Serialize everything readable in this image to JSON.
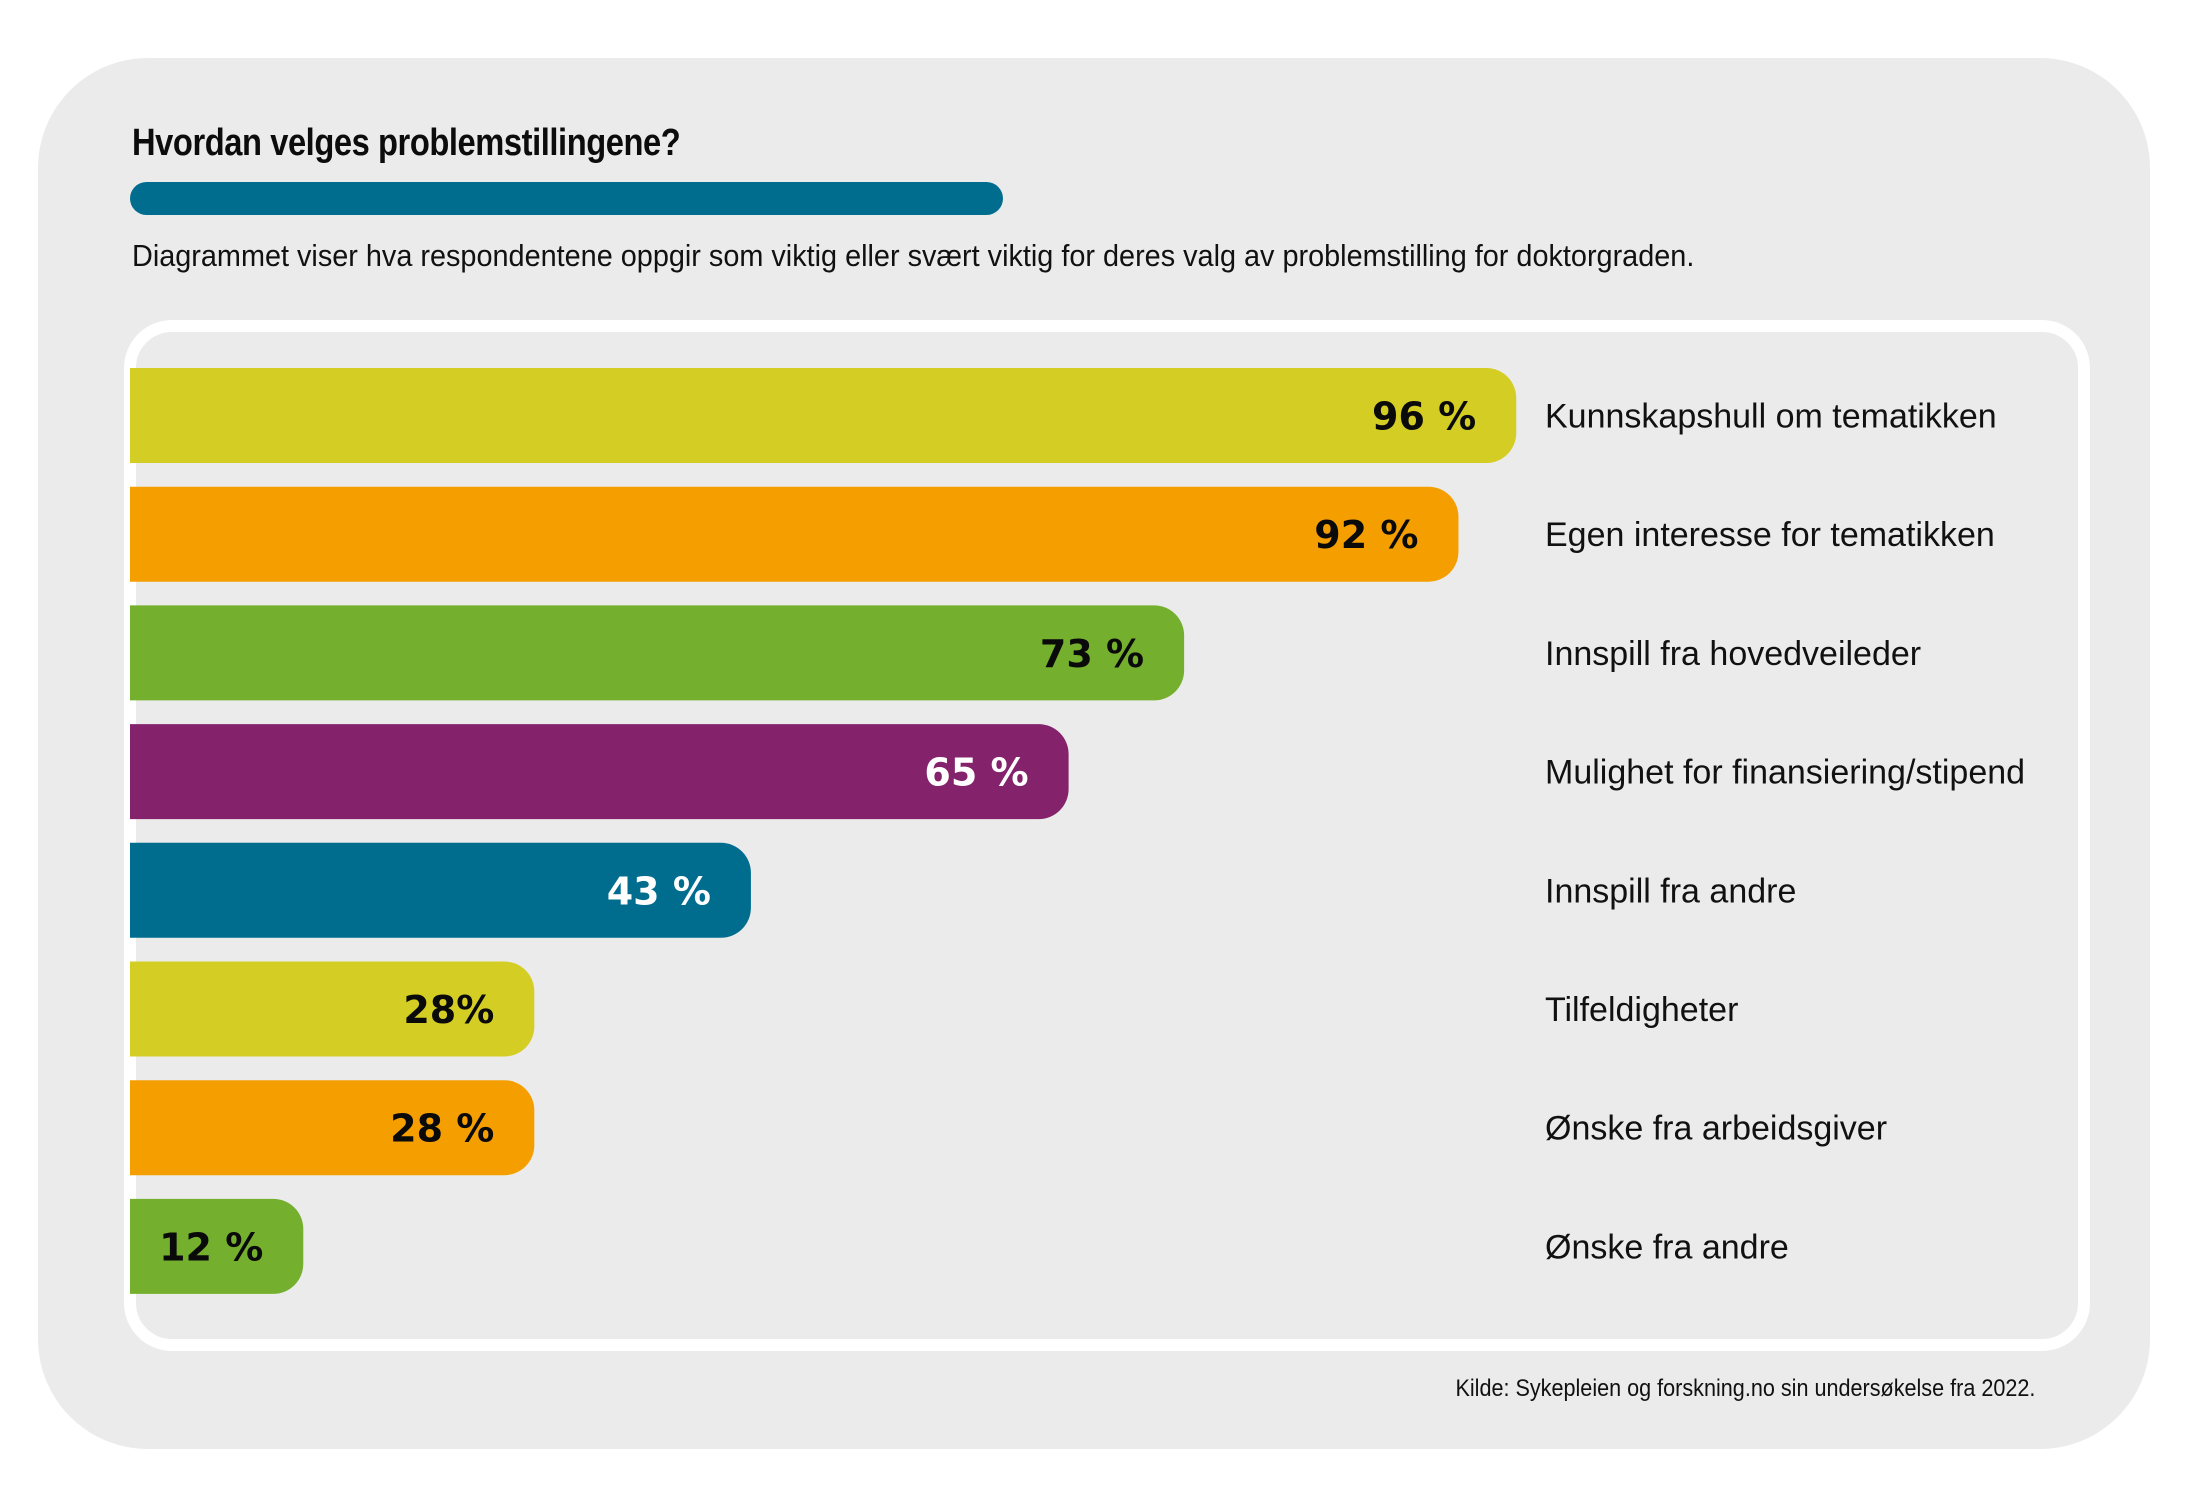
{
  "header": {
    "title": "Hvordan velges problemstillingene?",
    "subtitle": "Diagrammet viser hva respondentene oppgir som viktig eller svært viktig for deres valg av problemstilling for doktorgraden.",
    "accent_color": "#006d8f"
  },
  "footer": {
    "source": "Kilde: Sykepleien og forskning.no sin undersøkelse fra 2022."
  },
  "chart_data": {
    "type": "bar",
    "orientation": "horizontal",
    "title": "Hvordan velges problemstillingene?",
    "subtitle": "Diagrammet viser hva respondentene oppgir som viktig eller svært viktig for deres valg av problemstilling for doktorgraden.",
    "xlabel": "",
    "ylabel": "",
    "unit": "%",
    "grid": false,
    "legend": "none",
    "categories": [
      "Kunnskapshull om tematikken",
      "Egen interesse for tematikken",
      "Innspill fra hovedveileder",
      "Mulighet for finansiering/stipend",
      "Innspill fra andre",
      "Tilfeldigheter",
      "Ønske fra arbeidsgiver",
      "Ønske fra andre"
    ],
    "values": [
      96,
      92,
      73,
      65,
      43,
      28,
      28,
      12
    ],
    "value_labels": [
      "96 %",
      "92 %",
      "73 %",
      "65 %",
      "43 %",
      "28%",
      "28 %",
      "12 %"
    ],
    "bar_colors": [
      "#d4cd24",
      "#f59e00",
      "#74b02e",
      "#84236c",
      "#006d8f",
      "#d4cd24",
      "#f59e00",
      "#74b02e"
    ],
    "label_colors": [
      "#0a0a0a",
      "#0a0a0a",
      "#0a0a0a",
      "#ffffff",
      "#ffffff",
      "#0a0a0a",
      "#0a0a0a",
      "#0a0a0a"
    ],
    "xlim": [
      0,
      100
    ],
    "source": "Kilde: Sykepleien og forskning.no sin undersøkelse fra 2022."
  }
}
